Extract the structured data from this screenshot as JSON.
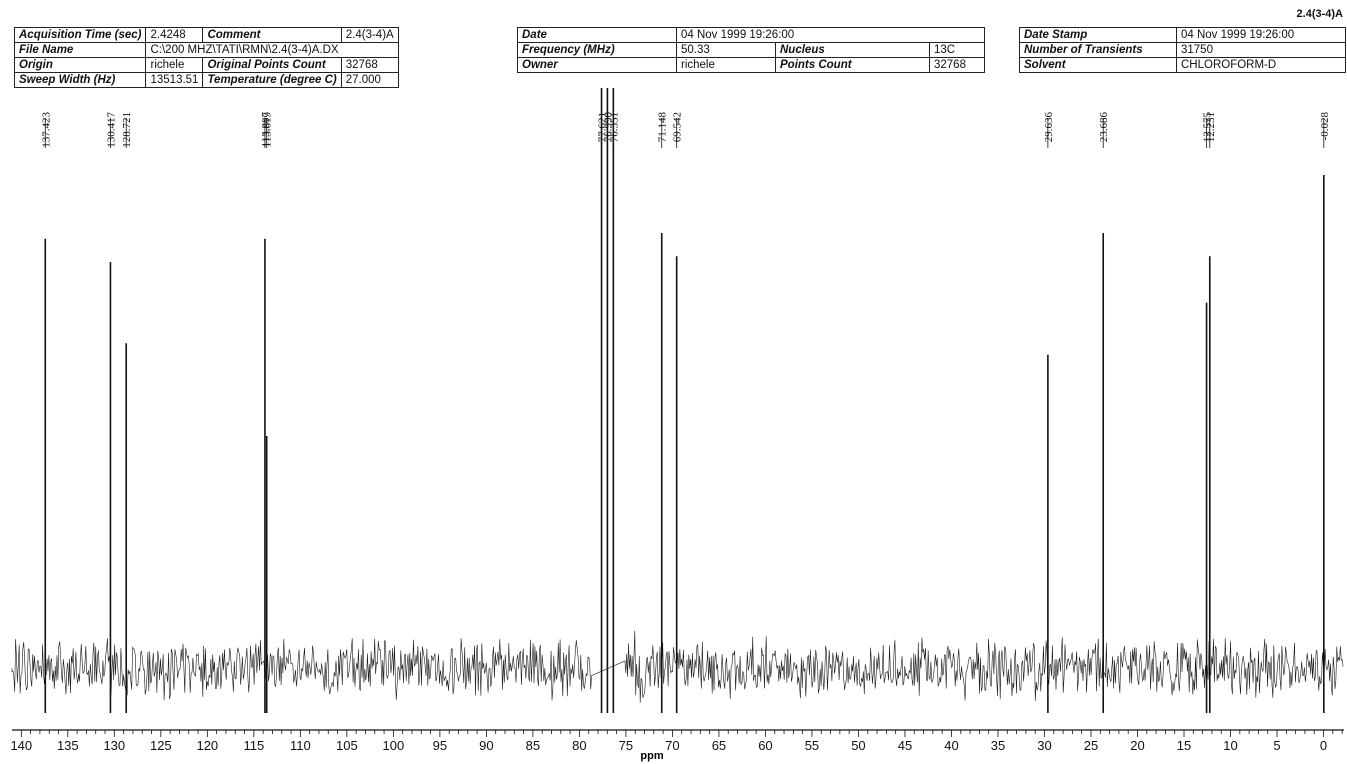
{
  "doc_title": "2.4(3-4)A",
  "meta_left": [
    {
      "k1": "Acquisition Time (sec)",
      "v1": "2.4248",
      "k2": "Comment",
      "v2": "2.4(3-4)A"
    },
    {
      "k1": "File Name",
      "v1": "C:\\200 MHZ\\TATI\\RMN\\2.4(3-4)A.DX",
      "k2": "",
      "v2": ""
    },
    {
      "k1": "Origin",
      "v1": "richele",
      "k2": "Original Points Count",
      "v2": "32768"
    },
    {
      "k1": "Sweep Width (Hz)",
      "v1": "13513.51",
      "k2": "Temperature (degree C)",
      "v2": "27.000"
    }
  ],
  "meta_mid": [
    {
      "k1": "Date",
      "v1": "04 Nov 1999 19:26:00",
      "k2": "",
      "v2": ""
    },
    {
      "k1": "Frequency (MHz)",
      "v1": "50.33",
      "k2": "Nucleus",
      "v2": "13C"
    },
    {
      "k1": "Owner",
      "v1": "richele",
      "k2": "Points Count",
      "v2": "32768"
    }
  ],
  "meta_right": [
    {
      "k": "Date Stamp",
      "v": "04 Nov 1999 19:26:00"
    },
    {
      "k": "Number of Transients",
      "v": "31750"
    },
    {
      "k": "Solvent",
      "v": "CHLOROFORM-D"
    }
  ],
  "chart_data": {
    "type": "line",
    "xlabel": "ppm",
    "xlim": [
      141.0,
      -2.2
    ],
    "x_reversed": true,
    "ticks_major": [
      140,
      135,
      130,
      125,
      120,
      115,
      110,
      105,
      100,
      95,
      90,
      85,
      80,
      75,
      70,
      65,
      60,
      55,
      50,
      45,
      40,
      35,
      30,
      25,
      20,
      15,
      10,
      5,
      0
    ],
    "peaks": [
      {
        "ppm": 137.423,
        "label": "137.423",
        "height": 0.74
      },
      {
        "ppm": 130.417,
        "label": "130.417",
        "height": 0.7
      },
      {
        "ppm": 128.721,
        "label": "128.721",
        "height": 0.56
      },
      {
        "ppm": 113.807,
        "label": "113.807",
        "height": 0.74
      },
      {
        "ppm": 113.619,
        "label": "113.619",
        "height": 0.4
      },
      {
        "ppm": 77.621,
        "label": "77.621",
        "height": 1.0
      },
      {
        "ppm": 76.99,
        "label": "76.990",
        "height": 1.0
      },
      {
        "ppm": 76.351,
        "label": "76.351",
        "height": 1.0
      },
      {
        "ppm": 71.148,
        "label": "71.148",
        "height": 0.75
      },
      {
        "ppm": 69.542,
        "label": "69.542",
        "height": 0.71
      },
      {
        "ppm": 29.636,
        "label": "29.636",
        "height": 0.54
      },
      {
        "ppm": 23.686,
        "label": "23.686",
        "height": 0.75
      },
      {
        "ppm": 12.575,
        "label": "12.575",
        "height": 0.63
      },
      {
        "ppm": 12.231,
        "label": "12.231",
        "height": 0.71
      },
      {
        "ppm": -0.028,
        "label": "-0.028",
        "height": 0.85
      }
    ]
  }
}
